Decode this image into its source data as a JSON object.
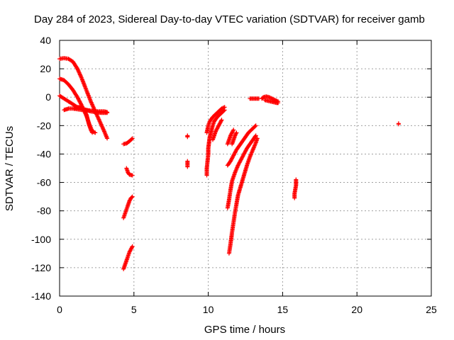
{
  "chart_data": {
    "type": "scatter",
    "title": "Day 284 of 2023, Sidereal Day-to-day VTEC variation (SDTVAR) for receiver gamb",
    "xlabel": "GPS time / hours",
    "ylabel": "SDTVAR / TECUs",
    "xlim": [
      0,
      25
    ],
    "ylim": [
      -140,
      40
    ],
    "xticks": [
      0,
      5,
      10,
      15,
      20,
      25
    ],
    "yticks": [
      -140,
      -120,
      -100,
      -80,
      -60,
      -40,
      -20,
      0,
      20,
      40
    ],
    "x_tick_labels": [
      "0",
      "5",
      "10",
      "15",
      "20",
      "25"
    ],
    "y_tick_labels": [
      "-140",
      "-120",
      "-100",
      "-80",
      "-60",
      "-40",
      "-20",
      "0",
      "20",
      "40"
    ],
    "grid": true,
    "marker": "+",
    "color": "#ff0000",
    "tracks": [
      {
        "name": "t1",
        "points": [
          [
            0.0,
            27
          ],
          [
            0.3,
            27.5
          ],
          [
            0.6,
            27
          ],
          [
            0.9,
            25
          ],
          [
            1.2,
            20
          ],
          [
            1.5,
            13
          ],
          [
            1.8,
            5
          ],
          [
            2.1,
            -3
          ],
          [
            2.4,
            -10
          ],
          [
            2.7,
            -17
          ],
          [
            3.0,
            -24
          ],
          [
            3.2,
            -29
          ]
        ]
      },
      {
        "name": "t2",
        "points": [
          [
            0.0,
            13
          ],
          [
            0.3,
            12
          ],
          [
            0.6,
            9
          ],
          [
            0.9,
            5
          ],
          [
            1.2,
            0
          ],
          [
            1.5,
            -6
          ],
          [
            1.8,
            -13
          ],
          [
            2.0,
            -19
          ],
          [
            2.2,
            -24
          ],
          [
            2.4,
            -25
          ]
        ]
      },
      {
        "name": "t3",
        "points": [
          [
            0.0,
            1
          ],
          [
            0.3,
            -1
          ],
          [
            0.6,
            -3
          ],
          [
            0.9,
            -5
          ],
          [
            1.2,
            -7
          ],
          [
            1.5,
            -8
          ],
          [
            1.8,
            -9
          ],
          [
            2.1,
            -10
          ],
          [
            2.4,
            -10.5
          ],
          [
            2.8,
            -11
          ],
          [
            3.2,
            -11
          ]
        ]
      },
      {
        "name": "t4",
        "points": [
          [
            0.3,
            -9
          ],
          [
            0.6,
            -8
          ],
          [
            0.9,
            -8
          ],
          [
            1.2,
            -8.5
          ],
          [
            1.5,
            -9
          ],
          [
            1.8,
            -9
          ],
          [
            2.1,
            -9.5
          ],
          [
            2.4,
            -10
          ],
          [
            2.7,
            -10
          ],
          [
            3.0,
            -10
          ],
          [
            3.2,
            -10.5
          ]
        ]
      },
      {
        "name": "t5",
        "points": [
          [
            1.0,
            -8
          ],
          [
            1.3,
            -7
          ],
          [
            1.6,
            -8
          ],
          [
            1.8,
            -12
          ],
          [
            1.9,
            -16
          ],
          [
            2.0,
            -20
          ],
          [
            2.1,
            -23
          ],
          [
            2.2,
            -25
          ]
        ]
      },
      {
        "name": "t6",
        "points": [
          [
            4.3,
            -33
          ],
          [
            4.5,
            -32.5
          ],
          [
            4.7,
            -31
          ],
          [
            4.9,
            -29
          ]
        ]
      },
      {
        "name": "t7",
        "points": [
          [
            4.5,
            -50
          ],
          [
            4.6,
            -53
          ],
          [
            4.7,
            -54.5
          ],
          [
            4.9,
            -55
          ]
        ]
      },
      {
        "name": "t8",
        "points": [
          [
            4.3,
            -85
          ],
          [
            4.4,
            -82
          ],
          [
            4.5,
            -79
          ],
          [
            4.6,
            -76
          ],
          [
            4.7,
            -73
          ],
          [
            4.8,
            -71
          ],
          [
            4.9,
            -70
          ]
        ]
      },
      {
        "name": "t9",
        "points": [
          [
            4.3,
            -121
          ],
          [
            4.4,
            -118
          ],
          [
            4.5,
            -115
          ],
          [
            4.6,
            -112
          ],
          [
            4.7,
            -109
          ],
          [
            4.8,
            -107
          ],
          [
            4.9,
            -105
          ]
        ]
      },
      {
        "name": "t10",
        "points": [
          [
            8.6,
            -27
          ],
          [
            8.6,
            -28
          ]
        ]
      },
      {
        "name": "t11",
        "points": [
          [
            8.6,
            -45
          ],
          [
            8.6,
            -47
          ],
          [
            8.6,
            -49
          ]
        ]
      },
      {
        "name": "t12",
        "points": [
          [
            9.9,
            -55
          ],
          [
            9.9,
            -50
          ],
          [
            9.95,
            -45
          ],
          [
            10.0,
            -40
          ],
          [
            10.0,
            -36
          ],
          [
            10.05,
            -32
          ],
          [
            10.1,
            -28
          ],
          [
            10.2,
            -24
          ],
          [
            10.3,
            -20
          ],
          [
            10.4,
            -17
          ],
          [
            10.6,
            -14
          ],
          [
            10.8,
            -12
          ],
          [
            11.0,
            -10
          ],
          [
            11.1,
            -9
          ]
        ]
      },
      {
        "name": "t13",
        "points": [
          [
            9.9,
            -25
          ],
          [
            10.0,
            -20
          ],
          [
            10.1,
            -17
          ],
          [
            10.3,
            -14
          ],
          [
            10.5,
            -12
          ],
          [
            10.7,
            -10
          ],
          [
            10.9,
            -8
          ],
          [
            11.1,
            -7
          ]
        ]
      },
      {
        "name": "t14",
        "points": [
          [
            10.3,
            -30
          ],
          [
            10.4,
            -27
          ],
          [
            10.5,
            -24
          ],
          [
            10.6,
            -22
          ],
          [
            10.7,
            -20
          ],
          [
            10.8,
            -18
          ],
          [
            10.9,
            -16
          ]
        ]
      },
      {
        "name": "t15",
        "points": [
          [
            11.3,
            -33
          ],
          [
            11.4,
            -30
          ],
          [
            11.5,
            -27
          ],
          [
            11.6,
            -25
          ],
          [
            11.7,
            -23
          ]
        ]
      },
      {
        "name": "t16",
        "points": [
          [
            11.6,
            -33
          ],
          [
            11.7,
            -30
          ],
          [
            11.8,
            -27
          ],
          [
            11.9,
            -25
          ]
        ]
      },
      {
        "name": "t17",
        "points": [
          [
            11.3,
            -48
          ],
          [
            11.5,
            -45
          ],
          [
            11.7,
            -41
          ],
          [
            11.9,
            -37
          ],
          [
            12.1,
            -34
          ],
          [
            12.3,
            -31
          ],
          [
            12.5,
            -28
          ],
          [
            12.7,
            -25
          ],
          [
            12.9,
            -23
          ],
          [
            13.1,
            -21
          ],
          [
            13.2,
            -20
          ]
        ]
      },
      {
        "name": "t18",
        "points": [
          [
            11.3,
            -78
          ],
          [
            11.4,
            -72
          ],
          [
            11.5,
            -65
          ],
          [
            11.6,
            -59
          ],
          [
            11.8,
            -53
          ],
          [
            12.0,
            -48
          ],
          [
            12.2,
            -44
          ],
          [
            12.4,
            -40
          ],
          [
            12.6,
            -36
          ],
          [
            12.8,
            -33
          ],
          [
            13.0,
            -30
          ],
          [
            13.2,
            -27
          ]
        ]
      },
      {
        "name": "t19",
        "points": [
          [
            11.4,
            -110
          ],
          [
            11.5,
            -103
          ],
          [
            11.6,
            -95
          ],
          [
            11.7,
            -88
          ],
          [
            11.8,
            -81
          ],
          [
            11.9,
            -75
          ],
          [
            12.0,
            -69
          ],
          [
            12.2,
            -62
          ],
          [
            12.4,
            -55
          ],
          [
            12.6,
            -48
          ],
          [
            12.8,
            -42
          ],
          [
            13.0,
            -37
          ],
          [
            13.2,
            -32
          ],
          [
            13.3,
            -29
          ]
        ]
      },
      {
        "name": "t20",
        "points": [
          [
            12.8,
            -1
          ],
          [
            13.0,
            -1
          ],
          [
            13.2,
            -1
          ],
          [
            13.4,
            -1
          ]
        ]
      },
      {
        "name": "t21",
        "points": [
          [
            13.6,
            -1
          ],
          [
            13.7,
            0
          ],
          [
            13.9,
            0.5
          ],
          [
            14.1,
            0
          ],
          [
            14.3,
            -1
          ],
          [
            14.5,
            -2
          ],
          [
            14.7,
            -3
          ]
        ]
      },
      {
        "name": "t22",
        "points": [
          [
            13.8,
            -2
          ],
          [
            14.0,
            -2.5
          ],
          [
            14.2,
            -3
          ],
          [
            14.4,
            -3.5
          ],
          [
            14.6,
            -4
          ],
          [
            14.7,
            -4
          ]
        ]
      },
      {
        "name": "t23",
        "points": [
          [
            15.8,
            -71
          ],
          [
            15.8,
            -68
          ],
          [
            15.85,
            -65
          ],
          [
            15.9,
            -62
          ],
          [
            15.9,
            -60
          ],
          [
            15.9,
            -58
          ]
        ]
      },
      {
        "name": "t24",
        "points": [
          [
            22.8,
            -19
          ],
          [
            22.8,
            -18.5
          ]
        ]
      }
    ]
  }
}
